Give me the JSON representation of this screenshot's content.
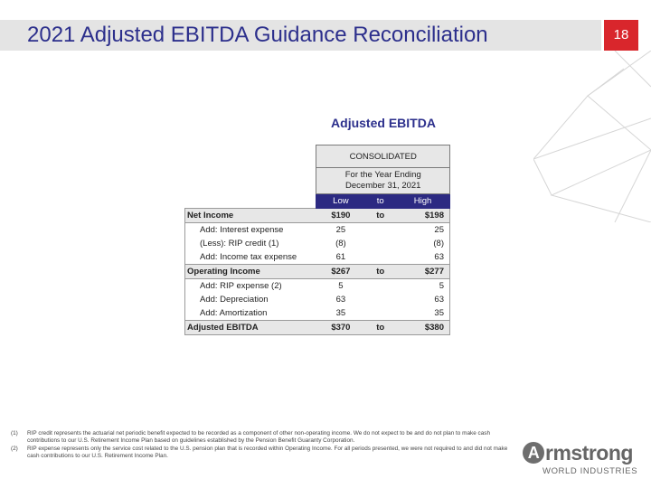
{
  "header": {
    "title": "2021 Adjusted EBITDA Guidance Reconciliation",
    "page_number": "18"
  },
  "table": {
    "heading": "Adjusted EBITDA",
    "group_header": "CONSOLIDATED",
    "period_line1": "For the Year Ending",
    "period_line2": "December 31, 2021",
    "col_low": "Low",
    "col_to": "to",
    "col_high": "High",
    "rows": [
      {
        "label": "Net Income",
        "low": "$190",
        "to": "to",
        "high": "$198"
      },
      {
        "label": "Add: Interest expense",
        "low": "25",
        "to": "",
        "high": "25"
      },
      {
        "label": "(Less): RIP credit (1)",
        "low": "(8)",
        "to": "",
        "high": "(8)"
      },
      {
        "label": "Add: Income tax expense",
        "low": "61",
        "to": "",
        "high": "63"
      },
      {
        "label": "Operating Income",
        "low": "$267",
        "to": "to",
        "high": "$277"
      },
      {
        "label": "Add: RIP expense (2)",
        "low": "5",
        "to": "",
        "high": "5"
      },
      {
        "label": "Add: Depreciation",
        "low": "63",
        "to": "",
        "high": "63"
      },
      {
        "label": "Add: Amortization",
        "low": "35",
        "to": "",
        "high": "35"
      },
      {
        "label": "Adjusted EBITDA",
        "low": "$370",
        "to": "to",
        "high": "$380"
      }
    ]
  },
  "footnotes": [
    {
      "marker": "(1)",
      "text": "RIP credit represents the actuarial net periodic benefit expected to be recorded as a component of other non-operating income. We do not expect to be and do not plan to make cash contributions to our U.S. Retirement Income Plan based on guidelines established by the Pension Benefit Guaranty Corporation."
    },
    {
      "marker": "(2)",
      "text": "RIP expense represents only the service cost related to the U.S. pension plan that is recorded within Operating Income. For all periods presented, we were not required to and did not make cash contributions to our U.S. Retirement Income Plan."
    }
  ],
  "logo": {
    "brand_rest": "rmstrong",
    "brand_initial": "A",
    "tagline": "WORLD INDUSTRIES"
  },
  "colors": {
    "accent_blue": "#2c2f8c",
    "header_band": "#2c2a82",
    "page_badge": "#d9262c"
  }
}
